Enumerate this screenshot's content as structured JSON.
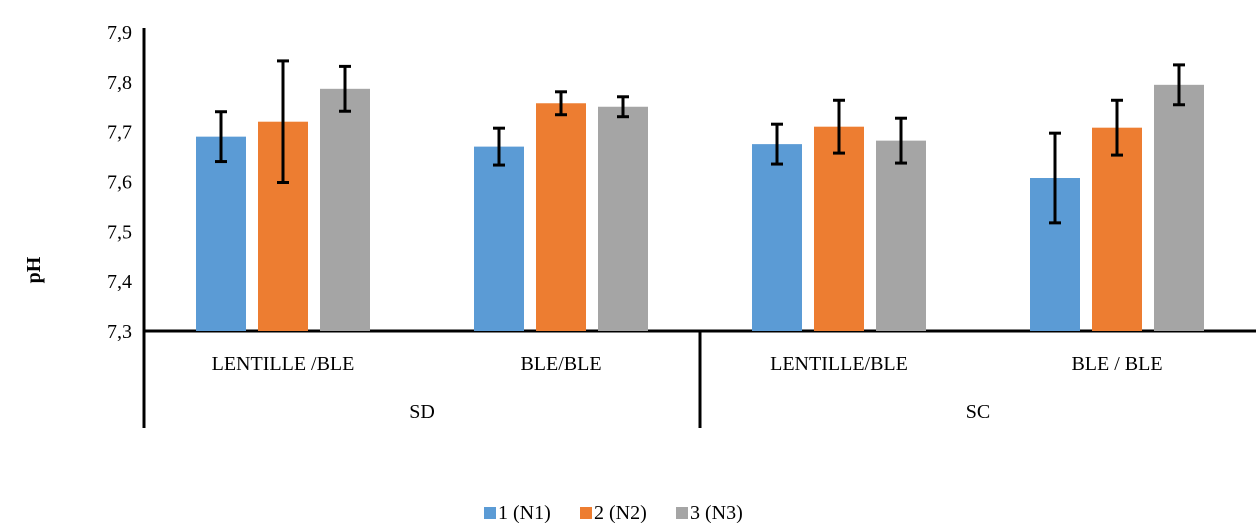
{
  "chart_data": {
    "type": "bar",
    "ylabel": "pH",
    "ylim": [
      7.3,
      7.9
    ],
    "yticks": [
      "7,3",
      "7,4",
      "7,5",
      "7,6",
      "7,7",
      "7,8",
      "7,9"
    ],
    "ytick_values": [
      7.3,
      7.4,
      7.5,
      7.6,
      7.7,
      7.8,
      7.9
    ],
    "categories": [
      "LENTILLE /BLE",
      "BLE/BLE",
      "LENTILLE/BLE",
      "BLE / BLE"
    ],
    "groups": [
      {
        "label": "SD",
        "categories": [
          0,
          1
        ]
      },
      {
        "label": "SC",
        "categories": [
          2,
          3
        ]
      }
    ],
    "series": [
      {
        "name": "1 (N1)",
        "color": "#5B9BD5",
        "values": [
          7.69,
          7.67,
          7.675,
          7.607
        ],
        "errors": [
          0.05,
          0.037,
          0.04,
          0.09
        ]
      },
      {
        "name": "2 (N2)",
        "color": "#ED7D31",
        "values": [
          7.72,
          7.757,
          7.71,
          7.708
        ],
        "errors": [
          0.122,
          0.023,
          0.053,
          0.055
        ]
      },
      {
        "name": "3 (N3)",
        "color": "#A5A5A5",
        "values": [
          7.786,
          7.75,
          7.682,
          7.794
        ],
        "errors": [
          0.045,
          0.02,
          0.045,
          0.04
        ]
      }
    ],
    "legend_position": "bottom",
    "grid": false
  }
}
